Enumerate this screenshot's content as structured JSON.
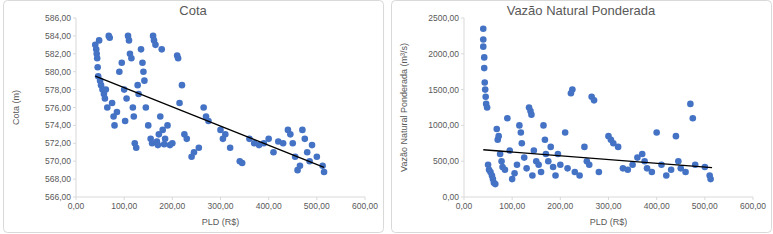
{
  "chart_data": [
    {
      "type": "scatter",
      "title": "Cota",
      "x_label": "PLD (R$)",
      "y_label": "Cota (m)",
      "xlim": [
        0,
        600
      ],
      "ylim": [
        566,
        586
      ],
      "xticks": [
        {
          "value": 0,
          "label": "0,00"
        },
        {
          "value": 100,
          "label": "100,00"
        },
        {
          "value": 200,
          "label": "200,00"
        },
        {
          "value": 300,
          "label": "300,00"
        },
        {
          "value": 400,
          "label": "400,00"
        },
        {
          "value": 500,
          "label": "500,00"
        },
        {
          "value": 600,
          "label": "600,00"
        }
      ],
      "yticks": [
        {
          "value": 566,
          "label": "566,00"
        },
        {
          "value": 568,
          "label": "568,00"
        },
        {
          "value": 570,
          "label": "570,00"
        },
        {
          "value": 572,
          "label": "572,00"
        },
        {
          "value": 574,
          "label": "574,00"
        },
        {
          "value": 576,
          "label": "576,00"
        },
        {
          "value": 578,
          "label": "578,00"
        },
        {
          "value": 580,
          "label": "580,00"
        },
        {
          "value": 582,
          "label": "582,00"
        },
        {
          "value": 584,
          "label": "584,00"
        },
        {
          "value": 586,
          "label": "586,00"
        }
      ],
      "grid": false,
      "series": [
        {
          "type": "scatter",
          "marker": "circle",
          "color": "#4472c4",
          "x": [
            40,
            42,
            43,
            44,
            45,
            46,
            48,
            50,
            52,
            55,
            58,
            60,
            62,
            65,
            68,
            70,
            75,
            78,
            80,
            85,
            90,
            95,
            100,
            102,
            105,
            108,
            110,
            112,
            115,
            118,
            120,
            122,
            125,
            128,
            130,
            135,
            138,
            140,
            142,
            145,
            150,
            155,
            158,
            160,
            162,
            165,
            168,
            170,
            172,
            175,
            178,
            180,
            183,
            185,
            190,
            195,
            200,
            210,
            212,
            215,
            220,
            225,
            230,
            240,
            245,
            255,
            265,
            270,
            275,
            300,
            305,
            310,
            320,
            340,
            345,
            360,
            370,
            380,
            390,
            400,
            410,
            420,
            430,
            440,
            445,
            450,
            455,
            460,
            465,
            470,
            475,
            480,
            485,
            490,
            500,
            512,
            515
          ],
          "values": [
            583,
            582.5,
            582,
            581.5,
            580.5,
            579.5,
            583.5,
            579,
            578.5,
            578,
            577.5,
            577,
            578,
            576,
            584,
            583.8,
            576.5,
            575,
            574,
            575.5,
            580,
            581,
            578,
            574.5,
            577,
            584,
            583.5,
            582,
            581.5,
            576,
            575,
            572,
            571.5,
            578.5,
            577.5,
            582.5,
            581,
            580,
            579,
            576,
            574,
            572.5,
            572,
            584,
            583.5,
            583,
            572.2,
            571.8,
            573,
            575,
            582.5,
            573.5,
            571.9,
            572.5,
            574,
            571.8,
            572,
            581.8,
            581.5,
            576.5,
            578.5,
            573,
            572.5,
            570.5,
            571,
            571.5,
            576,
            575,
            574.5,
            573.5,
            572.5,
            573,
            571.5,
            570,
            569.8,
            572.5,
            572,
            571.8,
            572,
            572.5,
            571,
            572.2,
            572,
            573.5,
            573,
            572,
            570.5,
            569,
            569.5,
            573.5,
            572.5,
            571,
            570,
            571.8,
            570.5,
            569.5,
            568.8
          ]
        },
        {
          "type": "line",
          "line_style": "solid",
          "color": "#000000",
          "x": [
            40,
            515
          ],
          "values": [
            579.5,
            569.3
          ]
        }
      ]
    },
    {
      "type": "scatter",
      "title": "Vazão Natural Ponderada",
      "x_label": "PLD (R$)",
      "y_label": "Vazão Natural Ponderada (m³/s)",
      "xlim": [
        0,
        600
      ],
      "ylim": [
        0,
        2500
      ],
      "xticks": [
        {
          "value": 0,
          "label": "0,00"
        },
        {
          "value": 100,
          "label": "100,00"
        },
        {
          "value": 200,
          "label": "200,00"
        },
        {
          "value": 300,
          "label": "300,00"
        },
        {
          "value": 400,
          "label": "400,00"
        },
        {
          "value": 500,
          "label": "500,00"
        },
        {
          "value": 600,
          "label": "600,00"
        }
      ],
      "yticks": [
        {
          "value": 0,
          "label": "0,00"
        },
        {
          "value": 500,
          "label": "500,00"
        },
        {
          "value": 1000,
          "label": "1000,00"
        },
        {
          "value": 1500,
          "label": "1500,00"
        },
        {
          "value": 2000,
          "label": "2000,00"
        },
        {
          "value": 2500,
          "label": "2500,00"
        }
      ],
      "grid": false,
      "series": [
        {
          "type": "scatter",
          "marker": "circle",
          "color": "#4472c4",
          "x": [
            40,
            40,
            40,
            42,
            42,
            43,
            44,
            45,
            46,
            48,
            50,
            52,
            55,
            58,
            60,
            62,
            65,
            68,
            70,
            72,
            75,
            78,
            80,
            85,
            90,
            95,
            100,
            105,
            110,
            115,
            118,
            120,
            125,
            130,
            135,
            138,
            140,
            142,
            145,
            150,
            155,
            160,
            165,
            168,
            170,
            175,
            180,
            185,
            190,
            195,
            200,
            210,
            215,
            222,
            225,
            230,
            240,
            250,
            255,
            260,
            265,
            270,
            280,
            300,
            305,
            310,
            320,
            330,
            340,
            350,
            360,
            370,
            375,
            380,
            390,
            400,
            410,
            420,
            430,
            440,
            445,
            450,
            460,
            470,
            475,
            480,
            500,
            510,
            512
          ],
          "values": [
            2350,
            2200,
            2100,
            1950,
            1800,
            1600,
            1500,
            1400,
            1300,
            1250,
            450,
            380,
            350,
            300,
            250,
            200,
            180,
            950,
            800,
            850,
            600,
            500,
            420,
            380,
            1100,
            650,
            250,
            330,
            450,
            1000,
            900,
            750,
            550,
            400,
            1250,
            1200,
            1150,
            300,
            650,
            500,
            450,
            350,
            1000,
            800,
            600,
            500,
            700,
            420,
            300,
            600,
            450,
            900,
            400,
            1450,
            1500,
            350,
            300,
            700,
            500,
            450,
            1400,
            1350,
            350,
            850,
            800,
            750,
            700,
            400,
            380,
            450,
            550,
            600,
            500,
            400,
            350,
            900,
            450,
            300,
            380,
            850,
            500,
            400,
            350,
            1300,
            1100,
            450,
            420,
            300,
            250
          ]
        },
        {
          "type": "line",
          "line_style": "solid",
          "color": "#000000",
          "x": [
            40,
            515
          ],
          "values": [
            660,
            410
          ]
        }
      ]
    }
  ]
}
